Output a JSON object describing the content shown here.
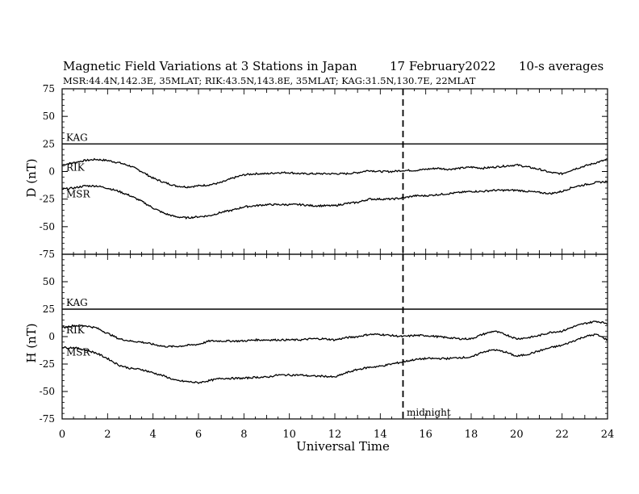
{
  "header": {
    "title": "Magnetic Field Variations at 3 Stations in Japan",
    "date": "17 February2022",
    "averaging": "10-s averages",
    "stations_line": "MSR:44.4N,142.3E, 35MLAT;  RIK:43.5N,143.8E, 35MLAT;  KAG:31.5N,130.7E, 22MLAT"
  },
  "chart_data": [
    {
      "type": "line",
      "panel": "top",
      "ylabel": "D (nT)",
      "ylim": [
        -75,
        75
      ],
      "yticks": [
        75,
        50,
        25,
        0,
        -25,
        -50,
        -75
      ],
      "xlim": [
        0,
        24
      ],
      "grid": false,
      "series": [
        {
          "name": "KAG",
          "x": [
            0,
            24
          ],
          "values": [
            25,
            25
          ]
        },
        {
          "name": "RIK",
          "x": [
            0,
            0.5,
            1,
            1.5,
            2,
            2.5,
            3,
            3.5,
            4,
            4.5,
            5,
            5.5,
            6,
            6.5,
            7,
            7.5,
            8,
            8.5,
            9,
            9.5,
            10,
            10.5,
            11,
            11.5,
            12,
            12.5,
            13,
            13.5,
            14,
            14.5,
            15,
            15.5,
            16,
            16.5,
            17,
            17.5,
            18,
            18.5,
            19,
            19.5,
            20,
            20.5,
            21,
            21.5,
            22,
            22.5,
            23,
            23.5,
            24
          ],
          "values": [
            6,
            8,
            10,
            11,
            10,
            8,
            5,
            0,
            -6,
            -10,
            -13,
            -14,
            -13,
            -12,
            -10,
            -6,
            -3,
            -2,
            -2,
            -1,
            -1,
            -2,
            -2,
            -2,
            -2,
            -2,
            -1,
            1,
            0,
            0,
            1,
            1,
            2,
            3,
            2,
            3,
            4,
            3,
            4,
            5,
            6,
            4,
            2,
            -1,
            -2,
            2,
            5,
            8,
            11
          ]
        },
        {
          "name": "MSR",
          "x": [
            0,
            0.5,
            1,
            1.5,
            2,
            2.5,
            3,
            3.5,
            4,
            4.5,
            5,
            5.5,
            6,
            6.5,
            7,
            7.5,
            8,
            8.5,
            9,
            9.5,
            10,
            10.5,
            11,
            11.5,
            12,
            12.5,
            13,
            13.5,
            14,
            14.5,
            15,
            15.5,
            16,
            16.5,
            17,
            17.5,
            18,
            18.5,
            19,
            19.5,
            20,
            20.5,
            21,
            21.5,
            22,
            22.5,
            23,
            23.5,
            24
          ],
          "values": [
            -16,
            -15,
            -13,
            -13,
            -15,
            -18,
            -22,
            -27,
            -33,
            -38,
            -41,
            -42,
            -41,
            -40,
            -37,
            -35,
            -32,
            -31,
            -30,
            -30,
            -30,
            -30,
            -31,
            -31,
            -31,
            -29,
            -28,
            -25,
            -25,
            -25,
            -24,
            -22,
            -22,
            -21,
            -20,
            -19,
            -18,
            -18,
            -17,
            -17,
            -17,
            -18,
            -19,
            -20,
            -18,
            -14,
            -12,
            -10,
            -9
          ]
        }
      ]
    },
    {
      "type": "line",
      "panel": "bottom",
      "ylabel": "H (nT)",
      "xlabel": "Universal Time",
      "ylim": [
        -75,
        75
      ],
      "yticks": [
        75,
        50,
        25,
        0,
        -25,
        -50,
        -75
      ],
      "xlim": [
        0,
        24
      ],
      "xticks": [
        0,
        2,
        4,
        6,
        8,
        10,
        12,
        14,
        16,
        18,
        20,
        22,
        24
      ],
      "grid": false,
      "series": [
        {
          "name": "KAG",
          "x": [
            0,
            24
          ],
          "values": [
            25,
            25
          ]
        },
        {
          "name": "RIK",
          "x": [
            0,
            0.5,
            1,
            1.5,
            2,
            2.5,
            3,
            3.5,
            4,
            4.5,
            5,
            5.5,
            6,
            6.5,
            7,
            7.5,
            8,
            8.5,
            9,
            9.5,
            10,
            10.5,
            11,
            11.5,
            12,
            12.5,
            13,
            13.5,
            14,
            14.5,
            15,
            15.5,
            16,
            16.5,
            17,
            17.5,
            18,
            18.5,
            19,
            19.5,
            20,
            20.5,
            21,
            21.5,
            22,
            22.5,
            23,
            23.5,
            24
          ],
          "values": [
            8,
            10,
            10,
            8,
            3,
            -2,
            -4,
            -5,
            -7,
            -9,
            -9,
            -8,
            -7,
            -4,
            -4,
            -4,
            -4,
            -3,
            -3,
            -3,
            -3,
            -3,
            -2,
            -2,
            -3,
            -1,
            0,
            2,
            2,
            1,
            0,
            1,
            1,
            0,
            -1,
            -2,
            -2,
            2,
            5,
            2,
            -2,
            -1,
            1,
            4,
            5,
            9,
            12,
            14,
            12
          ]
        },
        {
          "name": "MSR",
          "x": [
            0,
            0.5,
            1,
            1.5,
            2,
            2.5,
            3,
            3.5,
            4,
            4.5,
            5,
            5.5,
            6,
            6.5,
            7,
            7.5,
            8,
            8.5,
            9,
            9.5,
            10,
            10.5,
            11,
            11.5,
            12,
            12.5,
            13,
            13.5,
            14,
            14.5,
            15,
            15.5,
            16,
            16.5,
            17,
            17.5,
            18,
            18.5,
            19,
            19.5,
            20,
            20.5,
            21,
            21.5,
            22,
            22.5,
            23,
            23.5,
            24
          ],
          "values": [
            -10,
            -10,
            -12,
            -15,
            -20,
            -26,
            -29,
            -30,
            -33,
            -36,
            -40,
            -41,
            -42,
            -40,
            -38,
            -38,
            -38,
            -37,
            -37,
            -35,
            -35,
            -35,
            -36,
            -36,
            -37,
            -33,
            -30,
            -28,
            -27,
            -25,
            -23,
            -21,
            -20,
            -20,
            -20,
            -19,
            -19,
            -14,
            -12,
            -14,
            -18,
            -16,
            -13,
            -10,
            -8,
            -4,
            0,
            2,
            -3
          ]
        }
      ]
    }
  ],
  "annotations": {
    "midnight_label": "midnight",
    "midnight_ut": 15
  },
  "series_labels": {
    "kag": "KAG",
    "rik": "RIK",
    "msr": "MSR"
  }
}
